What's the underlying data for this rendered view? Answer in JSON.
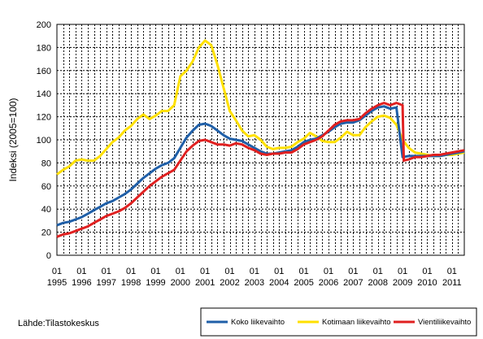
{
  "chart_data": {
    "type": "line",
    "ylabel": "Indeksi (2005=100)",
    "ylim": [
      0,
      200
    ],
    "yticks": [
      0,
      20,
      40,
      60,
      80,
      100,
      120,
      140,
      160,
      180,
      200
    ],
    "xlim": [
      1995,
      2011.5
    ],
    "quarter_label": "01",
    "years": [
      "1995",
      "1996",
      "1997",
      "1998",
      "1999",
      "2000",
      "2001",
      "2002",
      "2003",
      "2004",
      "2005",
      "2006",
      "2007",
      "2008",
      "2009",
      "2010",
      "2011"
    ],
    "grid": true,
    "legend_position": "bottom-right",
    "source": "Lähde:Tilastokeskus",
    "series": [
      {
        "name": "Koko liikevaihto",
        "color": "#1f5fa8",
        "points": [
          [
            1995.0,
            26
          ],
          [
            1995.25,
            28
          ],
          [
            1995.5,
            29
          ],
          [
            1995.75,
            31
          ],
          [
            1996.0,
            33
          ],
          [
            1996.25,
            36
          ],
          [
            1996.5,
            39
          ],
          [
            1996.75,
            42
          ],
          [
            1997.0,
            45
          ],
          [
            1997.25,
            47
          ],
          [
            1997.5,
            50
          ],
          [
            1997.75,
            53
          ],
          [
            1998.0,
            57
          ],
          [
            1998.25,
            62
          ],
          [
            1998.5,
            67
          ],
          [
            1998.75,
            71
          ],
          [
            1999.0,
            75
          ],
          [
            1999.25,
            78
          ],
          [
            1999.5,
            80
          ],
          [
            1999.75,
            84
          ],
          [
            2000.0,
            93
          ],
          [
            2000.25,
            102
          ],
          [
            2000.5,
            108
          ],
          [
            2000.75,
            113
          ],
          [
            2001.0,
            114
          ],
          [
            2001.25,
            112
          ],
          [
            2001.5,
            108
          ],
          [
            2001.75,
            104
          ],
          [
            2002.0,
            101
          ],
          [
            2002.25,
            100
          ],
          [
            2002.5,
            99
          ],
          [
            2002.75,
            96
          ],
          [
            2003.0,
            93
          ],
          [
            2003.25,
            90
          ],
          [
            2003.5,
            88
          ],
          [
            2003.75,
            88
          ],
          [
            2004.0,
            89
          ],
          [
            2004.25,
            90
          ],
          [
            2004.5,
            91
          ],
          [
            2004.75,
            94
          ],
          [
            2005.0,
            98
          ],
          [
            2005.25,
            100
          ],
          [
            2005.5,
            101
          ],
          [
            2005.75,
            104
          ],
          [
            2006.0,
            107
          ],
          [
            2006.25,
            111
          ],
          [
            2006.5,
            114
          ],
          [
            2006.75,
            115
          ],
          [
            2007.0,
            115
          ],
          [
            2007.25,
            117
          ],
          [
            2007.5,
            121
          ],
          [
            2007.75,
            125
          ],
          [
            2008.0,
            128
          ],
          [
            2008.25,
            129
          ],
          [
            2008.5,
            127
          ],
          [
            2008.75,
            128
          ],
          [
            2009.0,
            85
          ],
          [
            2009.25,
            86
          ],
          [
            2009.5,
            86
          ],
          [
            2009.75,
            86
          ],
          [
            2010.0,
            86
          ],
          [
            2010.25,
            86
          ],
          [
            2010.5,
            86
          ],
          [
            2010.75,
            87
          ],
          [
            2011.0,
            88
          ],
          [
            2011.25,
            89
          ],
          [
            2011.5,
            90
          ]
        ]
      },
      {
        "name": "Kotimaan liikevaihto",
        "color": "#ffe000",
        "points": [
          [
            1995.0,
            70
          ],
          [
            1995.25,
            74
          ],
          [
            1995.5,
            77
          ],
          [
            1995.75,
            82
          ],
          [
            1996.0,
            83
          ],
          [
            1996.25,
            82
          ],
          [
            1996.5,
            82
          ],
          [
            1996.75,
            86
          ],
          [
            1997.0,
            92
          ],
          [
            1997.25,
            98
          ],
          [
            1997.5,
            102
          ],
          [
            1997.75,
            108
          ],
          [
            1998.0,
            112
          ],
          [
            1998.25,
            118
          ],
          [
            1998.5,
            122
          ],
          [
            1998.75,
            118
          ],
          [
            1999.0,
            121
          ],
          [
            1999.25,
            125
          ],
          [
            1999.5,
            125
          ],
          [
            1999.75,
            130
          ],
          [
            2000.0,
            155
          ],
          [
            2000.25,
            160
          ],
          [
            2000.5,
            168
          ],
          [
            2000.75,
            180
          ],
          [
            2001.0,
            186
          ],
          [
            2001.25,
            182
          ],
          [
            2001.5,
            165
          ],
          [
            2001.75,
            145
          ],
          [
            2002.0,
            125
          ],
          [
            2002.25,
            117
          ],
          [
            2002.5,
            108
          ],
          [
            2002.75,
            103
          ],
          [
            2003.0,
            104
          ],
          [
            2003.25,
            100
          ],
          [
            2003.5,
            94
          ],
          [
            2003.75,
            92
          ],
          [
            2004.0,
            93
          ],
          [
            2004.25,
            93
          ],
          [
            2004.5,
            94
          ],
          [
            2004.75,
            98
          ],
          [
            2005.0,
            101
          ],
          [
            2005.25,
            106
          ],
          [
            2005.5,
            103
          ],
          [
            2005.75,
            99
          ],
          [
            2006.0,
            98
          ],
          [
            2006.25,
            98
          ],
          [
            2006.5,
            102
          ],
          [
            2006.75,
            107
          ],
          [
            2007.0,
            104
          ],
          [
            2007.25,
            104
          ],
          [
            2007.5,
            111
          ],
          [
            2007.75,
            116
          ],
          [
            2008.0,
            120
          ],
          [
            2008.25,
            121
          ],
          [
            2008.5,
            119
          ],
          [
            2008.75,
            113
          ],
          [
            2009.0,
            100
          ],
          [
            2009.25,
            93
          ],
          [
            2009.5,
            89
          ],
          [
            2009.75,
            88
          ],
          [
            2010.0,
            87
          ],
          [
            2010.25,
            86
          ],
          [
            2010.5,
            86
          ],
          [
            2010.75,
            87
          ],
          [
            2011.0,
            87
          ],
          [
            2011.25,
            88
          ],
          [
            2011.5,
            89
          ]
        ]
      },
      {
        "name": "Vientiliikevaihto",
        "color": "#e02020",
        "points": [
          [
            1995.0,
            16
          ],
          [
            1995.25,
            18
          ],
          [
            1995.5,
            19
          ],
          [
            1995.75,
            21
          ],
          [
            1996.0,
            23
          ],
          [
            1996.25,
            25
          ],
          [
            1996.5,
            28
          ],
          [
            1996.75,
            31
          ],
          [
            1997.0,
            34
          ],
          [
            1997.25,
            36
          ],
          [
            1997.5,
            38
          ],
          [
            1997.75,
            41
          ],
          [
            1998.0,
            45
          ],
          [
            1998.25,
            50
          ],
          [
            1998.5,
            55
          ],
          [
            1998.75,
            60
          ],
          [
            1999.0,
            64
          ],
          [
            1999.25,
            68
          ],
          [
            1999.5,
            71
          ],
          [
            1999.75,
            74
          ],
          [
            2000.0,
            82
          ],
          [
            2000.25,
            90
          ],
          [
            2000.5,
            95
          ],
          [
            2000.75,
            99
          ],
          [
            2001.0,
            100
          ],
          [
            2001.25,
            98
          ],
          [
            2001.5,
            96
          ],
          [
            2001.75,
            96
          ],
          [
            2002.0,
            95
          ],
          [
            2002.25,
            97
          ],
          [
            2002.5,
            96
          ],
          [
            2002.75,
            93
          ],
          [
            2003.0,
            91
          ],
          [
            2003.25,
            88
          ],
          [
            2003.5,
            87
          ],
          [
            2003.75,
            88
          ],
          [
            2004.0,
            88
          ],
          [
            2004.25,
            89
          ],
          [
            2004.5,
            89
          ],
          [
            2004.75,
            92
          ],
          [
            2005.0,
            96
          ],
          [
            2005.25,
            98
          ],
          [
            2005.5,
            100
          ],
          [
            2005.75,
            103
          ],
          [
            2006.0,
            108
          ],
          [
            2006.25,
            113
          ],
          [
            2006.5,
            116
          ],
          [
            2006.75,
            117
          ],
          [
            2007.0,
            117
          ],
          [
            2007.25,
            118
          ],
          [
            2007.5,
            123
          ],
          [
            2007.75,
            127
          ],
          [
            2008.0,
            130
          ],
          [
            2008.25,
            132
          ],
          [
            2008.5,
            130
          ],
          [
            2008.75,
            132
          ],
          [
            2009.0,
            130
          ],
          [
            2009.05,
            82
          ],
          [
            2009.25,
            83
          ],
          [
            2009.5,
            85
          ],
          [
            2009.75,
            85
          ],
          [
            2010.0,
            86
          ],
          [
            2010.25,
            87
          ],
          [
            2010.5,
            87
          ],
          [
            2010.75,
            88
          ],
          [
            2011.0,
            89
          ],
          [
            2011.25,
            90
          ],
          [
            2011.5,
            91
          ]
        ]
      }
    ]
  }
}
